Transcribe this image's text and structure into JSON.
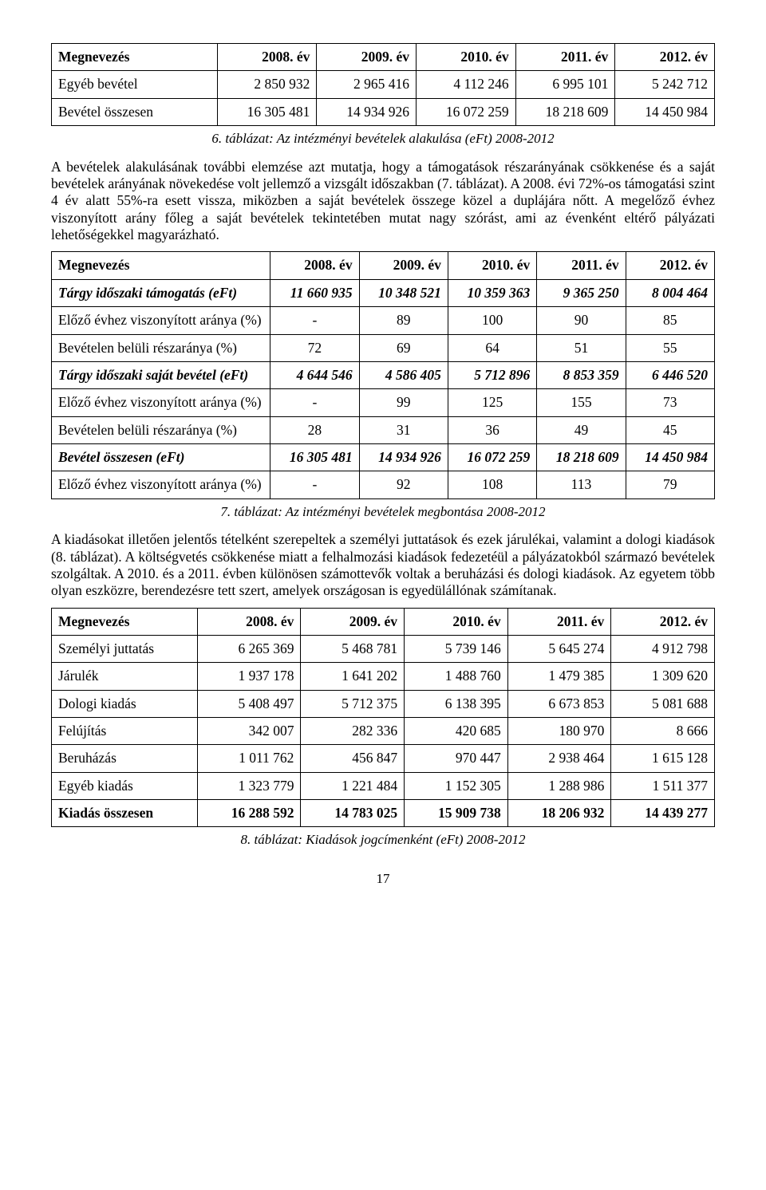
{
  "colors": {
    "text": "#000000",
    "background": "#ffffff",
    "border": "#000000"
  },
  "typography": {
    "body_fontsize_pt": 13,
    "font_family": "Times New Roman"
  },
  "page_number": "17",
  "table1": {
    "type": "table",
    "columns": [
      "Megnevezés",
      "2008. év",
      "2009. év",
      "2010. év",
      "2011. év",
      "2012. év"
    ],
    "rows": [
      {
        "label": "Egyéb bevétel",
        "cells": [
          "2 850 932",
          "2 965 416",
          "4 112 246",
          "6 995 101",
          "5 242 712"
        ],
        "bold": false
      },
      {
        "label": "Bevétel összesen",
        "cells": [
          "16 305 481",
          "14 934 926",
          "16 072 259",
          "18 218 609",
          "14 450 984"
        ],
        "bold": false
      }
    ],
    "caption": "6. táblázat: Az intézményi bevételek alakulása (eFt) 2008-2012"
  },
  "para1": "A bevételek alakulásának további elemzése azt mutatja, hogy a támogatások részarányának csökkenése és a saját bevételek arányának növekedése volt jellemző a vizsgált időszakban (7. táblázat). A 2008. évi 72%-os támogatási szint 4 év alatt 55%-ra esett vissza, miközben a saját bevételek összege közel a duplájára nőtt. A megelőző évhez viszonyított arány főleg a saját bevételek tekintetében mutat nagy szórást, ami az évenként eltérő pályázati lehetőségekkel magyarázható.",
  "table2": {
    "type": "table",
    "columns": [
      "Megnevezés",
      "2008. év",
      "2009. év",
      "2010. év",
      "2011. év",
      "2012. év"
    ],
    "rows": [
      {
        "label": "Tárgy időszaki támogatás (eFt)",
        "style": "bolditalic",
        "cells_align": "right",
        "cells": [
          "11 660 935",
          "10 348 521",
          "10 359 363",
          "9 365 250",
          "8 004 464"
        ]
      },
      {
        "label": "Előző évhez viszonyított aránya (%)",
        "style": "",
        "cells_align": "center",
        "cells": [
          "-",
          "89",
          "100",
          "90",
          "85"
        ]
      },
      {
        "label": "Bevételen belüli részaránya (%)",
        "style": "",
        "cells_align": "center",
        "cells": [
          "72",
          "69",
          "64",
          "51",
          "55"
        ]
      },
      {
        "label": "Tárgy időszaki saját bevétel (eFt)",
        "style": "bolditalic",
        "cells_align": "right",
        "cells": [
          "4 644 546",
          "4 586 405",
          "5 712 896",
          "8 853 359",
          "6 446 520"
        ]
      },
      {
        "label": "Előző évhez viszonyított aránya (%)",
        "style": "",
        "cells_align": "center",
        "cells": [
          "-",
          "99",
          "125",
          "155",
          "73"
        ]
      },
      {
        "label": "Bevételen belüli részaránya (%)",
        "style": "",
        "cells_align": "center",
        "cells": [
          "28",
          "31",
          "36",
          "49",
          "45"
        ]
      },
      {
        "label": "Bevétel összesen (eFt)",
        "style": "bolditalic",
        "cells_align": "right",
        "cells": [
          "16 305 481",
          "14 934 926",
          "16 072 259",
          "18 218 609",
          "14 450 984"
        ]
      },
      {
        "label": "Előző évhez viszonyított aránya (%)",
        "style": "",
        "cells_align": "center",
        "cells": [
          "-",
          "92",
          "108",
          "113",
          "79"
        ]
      }
    ],
    "caption": "7. táblázat: Az intézményi bevételek megbontása 2008-2012"
  },
  "para2": "A kiadásokat illetően jelentős tételként szerepeltek a személyi juttatások és ezek járulékai, valamint a dologi kiadások (8. táblázat). A költségvetés csökkenése miatt a felhalmozási kiadások fedezetéül a pályázatokból származó bevételek szolgáltak. A 2010. és a 2011. évben különösen számottevők voltak a beruházási és dologi kiadások. Az egyetem több olyan eszközre, berendezésre tett szert, amelyek országosan is egyedülállónak számítanak.",
  "table3": {
    "type": "table",
    "columns": [
      "Megnevezés",
      "2008. év",
      "2009. év",
      "2010. év",
      "2011. év",
      "2012. év"
    ],
    "rows": [
      {
        "label": "Személyi juttatás",
        "cells": [
          "6 265 369",
          "5 468 781",
          "5 739 146",
          "5 645 274",
          "4 912 798"
        ]
      },
      {
        "label": "Járulék",
        "cells": [
          "1 937 178",
          "1 641 202",
          "1 488 760",
          "1 479 385",
          "1 309 620"
        ]
      },
      {
        "label": "Dologi kiadás",
        "cells": [
          "5 408 497",
          "5 712 375",
          "6 138 395",
          "6 673 853",
          "5 081 688"
        ]
      },
      {
        "label": "Felújítás",
        "cells": [
          "342 007",
          "282 336",
          "420 685",
          "180 970",
          "8 666"
        ]
      },
      {
        "label": "Beruházás",
        "cells": [
          "1 011 762",
          "456 847",
          "970 447",
          "2 938 464",
          "1 615 128"
        ]
      },
      {
        "label": "Egyéb kiadás",
        "cells": [
          "1 323 779",
          "1 221 484",
          "1 152 305",
          "1 288 986",
          "1 511 377"
        ]
      },
      {
        "label": "Kiadás összesen",
        "bold": true,
        "cells": [
          "16 288 592",
          "14 783 025",
          "15 909 738",
          "18 206 932",
          "14 439 277"
        ]
      }
    ],
    "caption": "8. táblázat: Kiadások jogcímenként (eFt) 2008-2012"
  }
}
